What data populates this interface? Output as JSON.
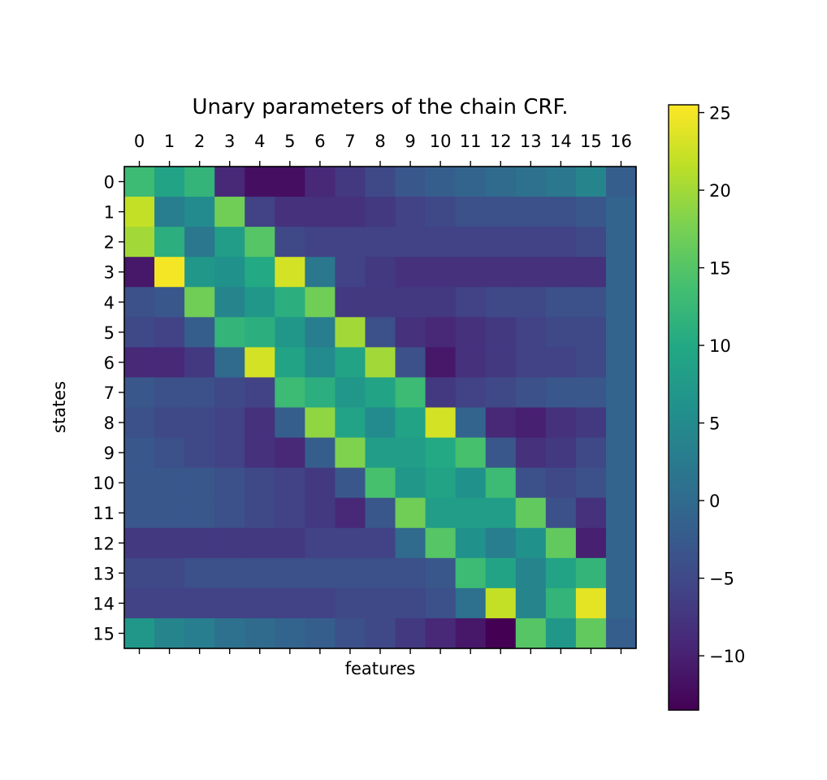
{
  "chart_data": {
    "type": "heatmap",
    "title": "Unary parameters of the chain CRF.",
    "xlabel": "features",
    "ylabel": "states",
    "x_categories": [
      "0",
      "1",
      "2",
      "3",
      "4",
      "5",
      "6",
      "7",
      "8",
      "9",
      "10",
      "11",
      "12",
      "13",
      "14",
      "15",
      "16"
    ],
    "y_categories": [
      "0",
      "1",
      "2",
      "3",
      "4",
      "5",
      "6",
      "7",
      "8",
      "9",
      "10",
      "11",
      "12",
      "13",
      "14",
      "15"
    ],
    "colormap": "viridis",
    "vmin": -13.5,
    "vmax": 25.5,
    "colorbar_ticks": [
      -10,
      -5,
      0,
      5,
      10,
      15,
      20,
      25
    ],
    "colorbar_tick_labels": [
      "−10",
      "−5",
      "0",
      "5",
      "10",
      "15",
      "20",
      "25"
    ],
    "values": [
      [
        13,
        9,
        12,
        -9,
        -12,
        -12,
        -9,
        -7,
        -5,
        -3,
        -2,
        -1,
        0,
        1,
        2,
        4,
        -2
      ],
      [
        22,
        3,
        5,
        17,
        -6,
        -8,
        -8,
        -8,
        -7,
        -6,
        -5,
        -4,
        -4,
        -4,
        -4,
        -3,
        -1
      ],
      [
        20,
        11,
        2,
        8,
        15,
        -5,
        -6,
        -6,
        -6,
        -6,
        -6,
        -6,
        -6,
        -6,
        -6,
        -5,
        -1
      ],
      [
        -11,
        25,
        7,
        6,
        10,
        23,
        2,
        -6,
        -7,
        -8,
        -8,
        -8,
        -8,
        -8,
        -8,
        -8,
        -1
      ],
      [
        -4,
        -3,
        17,
        4,
        7,
        11,
        17,
        -7,
        -7,
        -7,
        -7,
        -6,
        -5,
        -5,
        -4,
        -4,
        -1
      ],
      [
        -5,
        -6,
        -2,
        12,
        11,
        7,
        3,
        20,
        -4,
        -8,
        -9,
        -8,
        -7,
        -6,
        -5,
        -5,
        -1
      ],
      [
        -9,
        -9,
        -7,
        0,
        23,
        9,
        5,
        9,
        20,
        -4,
        -11,
        -8,
        -7,
        -6,
        -6,
        -5,
        -1
      ],
      [
        -3,
        -4,
        -4,
        -5,
        -6,
        13,
        11,
        7,
        9,
        13,
        -7,
        -6,
        -5,
        -4,
        -3,
        -3,
        -1
      ],
      [
        -4,
        -5,
        -5,
        -6,
        -8,
        -2,
        19,
        9,
        5,
        9,
        23,
        -1,
        -9,
        -10,
        -8,
        -7,
        -1
      ],
      [
        -3,
        -4,
        -5,
        -6,
        -8,
        -9,
        -2,
        18,
        8,
        8,
        10,
        14,
        -3,
        -8,
        -7,
        -5,
        -1
      ],
      [
        -3,
        -3,
        -3,
        -4,
        -5,
        -6,
        -7,
        -3,
        14,
        7,
        9,
        6,
        13,
        -4,
        -5,
        -4,
        -1
      ],
      [
        -3,
        -3,
        -3,
        -4,
        -5,
        -6,
        -7,
        -9,
        -3,
        17,
        8,
        8,
        8,
        16,
        -4,
        -8,
        -1
      ],
      [
        -7,
        -7,
        -7,
        -7,
        -7,
        -7,
        -6,
        -6,
        -6,
        0,
        15,
        6,
        3,
        6,
        16,
        -10,
        -1
      ],
      [
        -5,
        -5,
        -4,
        -4,
        -4,
        -4,
        -4,
        -4,
        -4,
        -4,
        -3,
        13,
        9,
        4,
        9,
        12,
        -1
      ],
      [
        -6,
        -6,
        -6,
        -6,
        -6,
        -6,
        -6,
        -5,
        -5,
        -5,
        -4,
        1,
        22,
        4,
        12,
        24,
        -1
      ],
      [
        7,
        4,
        3,
        1,
        0,
        -1,
        -2,
        -4,
        -5,
        -7,
        -9,
        -11,
        -14,
        15,
        7,
        16,
        -2
      ]
    ]
  }
}
